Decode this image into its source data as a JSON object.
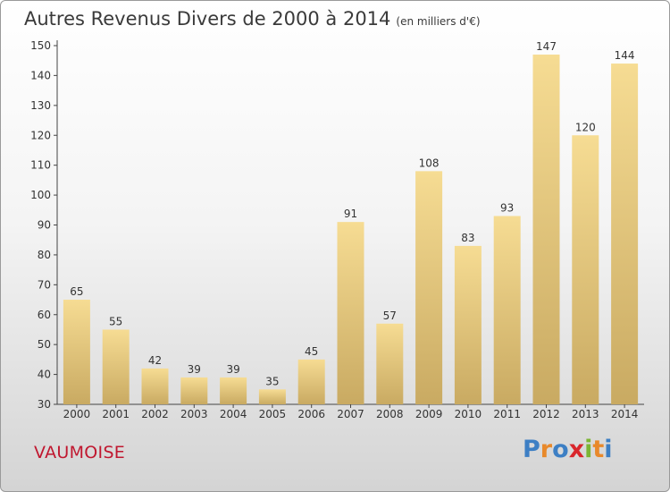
{
  "title": "Autres Revenus Divers de 2000 à 2014",
  "unit": "(en milliers d'€)",
  "location": "VAUMOISE",
  "brand": {
    "text": "Proxiti",
    "letters": [
      {
        "ch": "P",
        "color": "#3d7fc4"
      },
      {
        "ch": "r",
        "color": "#e8892b"
      },
      {
        "ch": "o",
        "color": "#3d7fc4"
      },
      {
        "ch": "x",
        "color": "#d9262c"
      },
      {
        "ch": "i",
        "color": "#7cb534"
      },
      {
        "ch": "t",
        "color": "#e8892b"
      },
      {
        "ch": "i",
        "color": "#3d7fc4"
      }
    ]
  },
  "chart_data": {
    "type": "bar",
    "title": "Autres Revenus Divers de 2000 à 2014",
    "categories": [
      "2000",
      "2001",
      "2002",
      "2003",
      "2004",
      "2005",
      "2006",
      "2007",
      "2008",
      "2009",
      "2010",
      "2011",
      "2012",
      "2013",
      "2014"
    ],
    "values": [
      65,
      55,
      42,
      39,
      39,
      35,
      45,
      91,
      57,
      108,
      83,
      93,
      147,
      120,
      144
    ],
    "ylim": [
      30,
      150
    ],
    "yticks": [
      30,
      40,
      50,
      60,
      70,
      80,
      90,
      100,
      110,
      120,
      130,
      140,
      150
    ],
    "bar_color": "#e8c97a",
    "grid": false
  }
}
